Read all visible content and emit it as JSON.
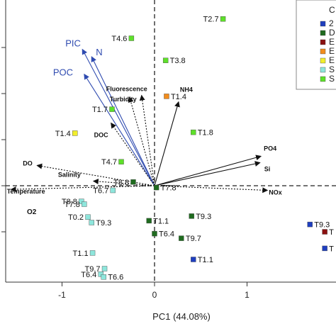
{
  "chart_data": {
    "type": "scatter",
    "subtype": "pca-biplot",
    "xlabel": "PC1 (44.08%)",
    "ylabel": "",
    "x_ticks": [
      "-1",
      "0",
      "1"
    ],
    "xlim": [
      -1.62,
      1.98
    ],
    "ylim": [
      -1.05,
      1.97
    ],
    "grid": false,
    "legend_position": "top-right (clipped)",
    "legend": [
      {
        "label": "2",
        "color": "#1f3fbf"
      },
      {
        "label": "D",
        "color": "#1f6b1f"
      },
      {
        "label": "E",
        "color": "#8b1010"
      },
      {
        "label": "E",
        "color": "#f28c1c"
      },
      {
        "label": "E",
        "color": "#f2ee2c"
      },
      {
        "label": "S",
        "color": "#8ee6dc"
      },
      {
        "label": "S",
        "color": "#5ee02a"
      }
    ],
    "legend_title": "C",
    "points": [
      {
        "label": "T2.7",
        "x": 0.74,
        "y": 1.81,
        "color": "#5ee02a"
      },
      {
        "label": "T4.6",
        "x": -0.25,
        "y": 1.6,
        "color": "#5ee02a"
      },
      {
        "label": "T3.8",
        "x": 0.12,
        "y": 1.36,
        "color": "#5ee02a"
      },
      {
        "label": "T1.4",
        "x": 0.13,
        "y": 0.97,
        "color": "#f28c1c"
      },
      {
        "label": "T1.7",
        "x": -0.46,
        "y": 0.83,
        "color": "#5ee02a"
      },
      {
        "label": "T1.8",
        "x": 0.42,
        "y": 0.58,
        "color": "#5ee02a"
      },
      {
        "label": "T1.4",
        "x": -0.86,
        "y": 0.57,
        "color": "#f2ee2c"
      },
      {
        "label": "T4.7",
        "x": -0.36,
        "y": 0.26,
        "color": "#5ee02a"
      },
      {
        "label": "T8.8",
        "x": -0.23,
        "y": 0.04,
        "color": "#1f6b1f"
      },
      {
        "label": "T7.8",
        "x": 0.02,
        "y": -0.02,
        "color": "#1f6b1f"
      },
      {
        "label": "T6.7",
        "x": -0.45,
        "y": -0.05,
        "color": "#8ee6dc"
      },
      {
        "label": "T8.8",
        "x": -0.79,
        "y": -0.17,
        "color": "#8ee6dc"
      },
      {
        "label": "T7.8",
        "x": -0.76,
        "y": -0.2,
        "color": "#8ee6dc"
      },
      {
        "label": "T0.2",
        "x": -0.72,
        "y": -0.34,
        "color": "#8ee6dc"
      },
      {
        "label": "T9.3",
        "x": -0.68,
        "y": -0.4,
        "color": "#8ee6dc"
      },
      {
        "label": "T1.1",
        "x": -0.06,
        "y": -0.38,
        "color": "#1f6b1f"
      },
      {
        "label": "T9.3",
        "x": 0.4,
        "y": -0.33,
        "color": "#1f6b1f"
      },
      {
        "label": "T6.4",
        "x": 0.0,
        "y": -0.52,
        "color": "#1f6b1f"
      },
      {
        "label": "T9.7",
        "x": 0.29,
        "y": -0.57,
        "color": "#1f6b1f"
      },
      {
        "label": "T1.1",
        "x": 0.42,
        "y": -0.8,
        "color": "#1f3fbf"
      },
      {
        "label": "T1.1",
        "x": -0.67,
        "y": -0.73,
        "color": "#8ee6dc"
      },
      {
        "label": "T9.7",
        "x": -0.54,
        "y": -0.9,
        "color": "#8ee6dc"
      },
      {
        "label": "T6.4",
        "x": -0.58,
        "y": -0.96,
        "color": "#8ee6dc"
      },
      {
        "label": "T6.6",
        "x": -0.55,
        "y": -0.99,
        "color": "#8ee6dc"
      },
      {
        "label": "T9.3",
        "x": 1.68,
        "y": -0.42,
        "color": "#1f3fbf"
      },
      {
        "label": "T",
        "x": 1.84,
        "y": -0.5,
        "color": "#8b1010"
      },
      {
        "label": "T",
        "x": 1.84,
        "y": -0.68,
        "color": "#1f3fbf"
      }
    ],
    "vectors": [
      {
        "label": "PIC",
        "x": -0.78,
        "y": 1.48,
        "style": "blue"
      },
      {
        "label": "N",
        "x": -0.68,
        "y": 1.4,
        "style": "blue"
      },
      {
        "label": "POC",
        "x": -0.76,
        "y": 1.21,
        "style": "blue"
      },
      {
        "label": "Fluorescence",
        "x": -0.14,
        "y": 0.98,
        "style": "dotted"
      },
      {
        "label": "Turbidity",
        "x": -0.27,
        "y": 0.96,
        "style": "dotted"
      },
      {
        "label": "NH4",
        "x": 0.26,
        "y": 0.91,
        "style": "solid"
      },
      {
        "label": "DOC",
        "x": -0.47,
        "y": 0.68,
        "style": "dotted"
      },
      {
        "label": "PO4",
        "x": 1.15,
        "y": 0.32,
        "style": "solid"
      },
      {
        "label": "Si",
        "x": 1.14,
        "y": 0.25,
        "style": "solid"
      },
      {
        "label": "DO",
        "x": -1.27,
        "y": 0.22,
        "style": "dotted"
      },
      {
        "label": "Salinity",
        "x": -0.66,
        "y": 0.05,
        "style": "dotted"
      },
      {
        "label": "Temperature",
        "x": -1.55,
        "y": -0.04,
        "style": "dotted"
      },
      {
        "label": "NOx",
        "x": 1.22,
        "y": -0.05,
        "style": "dotted"
      },
      {
        "label": "O2",
        "x": 0,
        "y": 0,
        "style": "label-only"
      }
    ]
  }
}
